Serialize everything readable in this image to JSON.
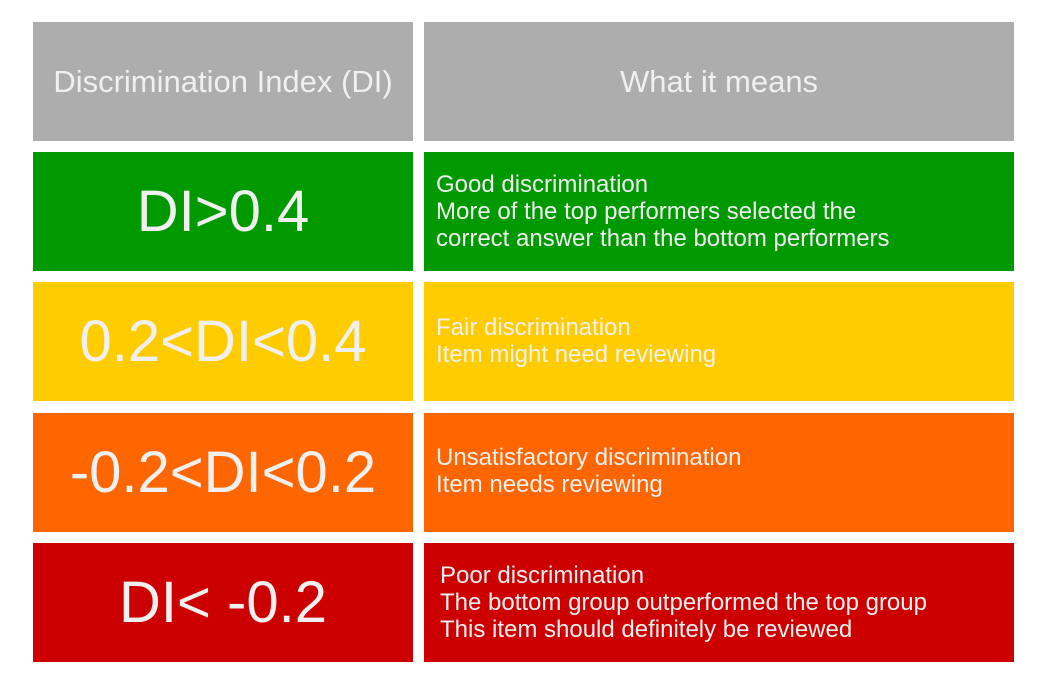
{
  "table": {
    "header": [
      "Discrimination Index (DI)",
      "What it means"
    ],
    "rows": [
      {
        "range": "DI>0.4",
        "meaning": [
          "Good discrimination",
          "More of the top performers selected the",
          "correct answer than the bottom performers"
        ]
      },
      {
        "range": "0.2<DI<0.4",
        "meaning": [
          "Fair discrimination",
          "Item might need reviewing"
        ]
      },
      {
        "range": "-0.2<DI<0.2",
        "meaning": [
          "Unsatisfactory discrimination",
          "Item needs reviewing"
        ]
      },
      {
        "range": "DI< -0.2",
        "meaning": [
          "Poor discrimination",
          "The bottom group outperformed the top group",
          "This item should definitely be reviewed"
        ]
      }
    ]
  }
}
